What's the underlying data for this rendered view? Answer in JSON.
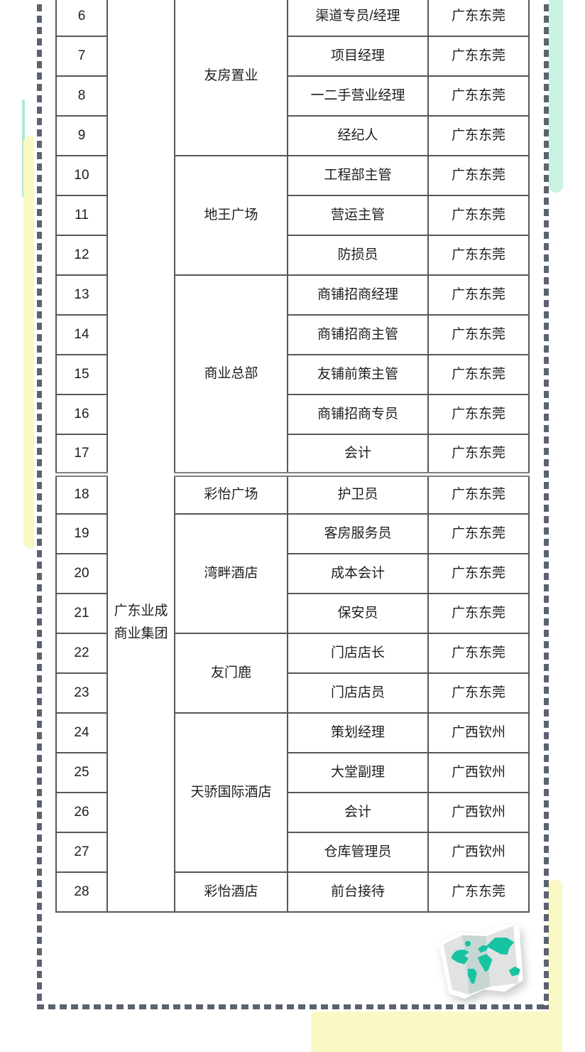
{
  "decor": {
    "yellow": "#FAF8C5",
    "mint": "#C9F3E0",
    "mint_line": "#ADE9D1",
    "teal": "#16C4A2",
    "dash_border": "#5B6370",
    "grid_line": "#575757"
  },
  "icons": {
    "map_icon": "folded-world-map"
  },
  "table": {
    "group": {
      "lines": [
        "广东业成",
        "商业集团"
      ]
    },
    "rows": [
      {
        "no": "6",
        "company": "友房置业",
        "company_rowspan": 4,
        "position": "渠道专员/经理",
        "location": "广东东莞"
      },
      {
        "no": "7",
        "position": "项目经理",
        "location": "广东东莞"
      },
      {
        "no": "8",
        "position": "一二手营业经理",
        "location": "广东东莞"
      },
      {
        "no": "9",
        "position": "经纪人",
        "location": "广东东莞"
      },
      {
        "no": "10",
        "company": "地王广场",
        "company_rowspan": 3,
        "position": "工程部主管",
        "location": "广东东莞"
      },
      {
        "no": "11",
        "position": "营运主管",
        "location": "广东东莞"
      },
      {
        "no": "12",
        "position": "防损员",
        "location": "广东东莞"
      },
      {
        "no": "13",
        "company": "商业总部",
        "company_rowspan": 5,
        "position": "商铺招商经理",
        "location": "广东东莞"
      },
      {
        "no": "14",
        "position": "商铺招商主管",
        "location": "广东东莞"
      },
      {
        "no": "15",
        "position": "友铺前策主管",
        "location": "广东东莞"
      },
      {
        "no": "16",
        "position": "商铺招商专员",
        "location": "广东东莞"
      },
      {
        "no": "17",
        "position": "会计",
        "location": "广东东莞"
      },
      {
        "no": "18",
        "company": "彩怡广场",
        "company_rowspan": 1,
        "position": "护卫员",
        "location": "广东东莞",
        "section_break": true
      },
      {
        "no": "19",
        "company": "湾畔酒店",
        "company_rowspan": 3,
        "position": "客房服务员",
        "location": "广东东莞"
      },
      {
        "no": "20",
        "position": "成本会计",
        "location": "广东东莞"
      },
      {
        "no": "21",
        "position": "保安员",
        "location": "广东东莞"
      },
      {
        "no": "22",
        "company": "友门鹿",
        "company_rowspan": 2,
        "position": "门店店长",
        "location": "广东东莞"
      },
      {
        "no": "23",
        "position": "门店店员",
        "location": "广东东莞"
      },
      {
        "no": "24",
        "company": "天骄国际酒店",
        "company_rowspan": 4,
        "position": "策划经理",
        "location": "广西钦州"
      },
      {
        "no": "25",
        "position": "大堂副理",
        "location": "广西钦州"
      },
      {
        "no": "26",
        "position": "会计",
        "location": "广西钦州"
      },
      {
        "no": "27",
        "position": "仓库管理员",
        "location": "广西钦州"
      },
      {
        "no": "28",
        "company": "彩怡酒店",
        "company_rowspan": 1,
        "position": "前台接待",
        "location": "广东东莞"
      }
    ]
  }
}
